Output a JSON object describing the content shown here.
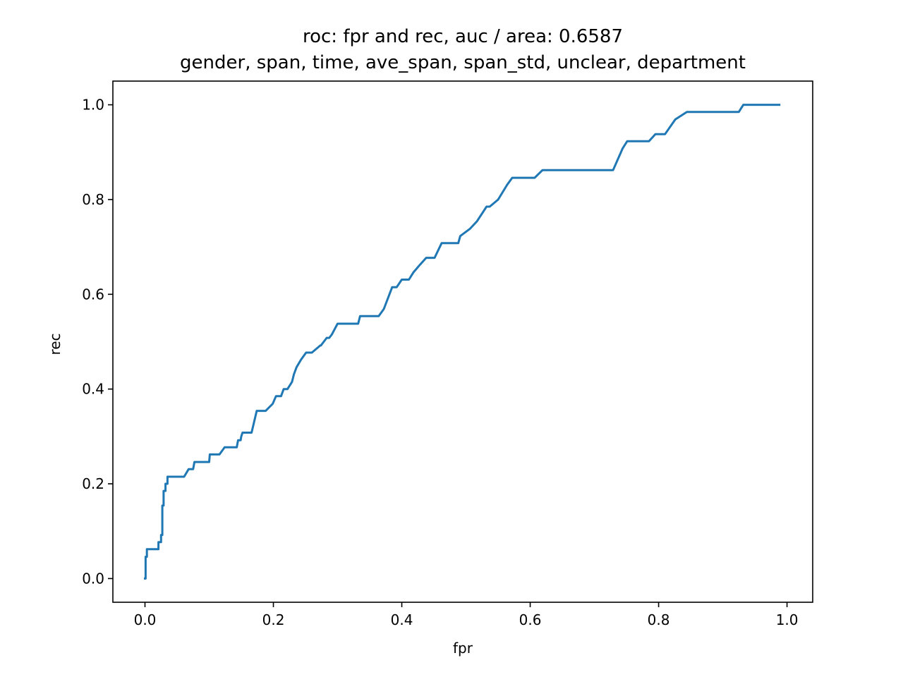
{
  "chart_data": {
    "type": "line",
    "title": "roc: fpr and rec, auc / area: 0.6587",
    "subtitle": "gender, span, time, ave_span, span_std, unclear, department",
    "xlabel": "fpr",
    "ylabel": "rec",
    "xlim": [
      -0.05,
      1.04
    ],
    "ylim": [
      -0.05,
      1.05
    ],
    "grid": false,
    "x_ticks": [
      0.0,
      0.2,
      0.4,
      0.6,
      0.8,
      1.0
    ],
    "x_tick_labels": [
      "0.0",
      "0.2",
      "0.4",
      "0.6",
      "0.8",
      "1.0"
    ],
    "y_ticks": [
      0.0,
      0.2,
      0.4,
      0.6,
      0.8,
      1.0
    ],
    "y_tick_labels": [
      "0.0",
      "0.2",
      "0.4",
      "0.6",
      "0.8",
      "1.0"
    ],
    "series": [
      {
        "color": "#1f77b4",
        "x": [
          0.0,
          0.001,
          0.001,
          0.003,
          0.003,
          0.021,
          0.021,
          0.025,
          0.025,
          0.027,
          0.027,
          0.029,
          0.029,
          0.032,
          0.032,
          0.035,
          0.035,
          0.037,
          0.037,
          0.061,
          0.068,
          0.075,
          0.077,
          0.1,
          0.101,
          0.116,
          0.124,
          0.143,
          0.145,
          0.149,
          0.15,
          0.152,
          0.166,
          0.174,
          0.188,
          0.199,
          0.204,
          0.212,
          0.216,
          0.222,
          0.229,
          0.232,
          0.236,
          0.243,
          0.251,
          0.257,
          0.26,
          0.273,
          0.274,
          0.283,
          0.287,
          0.291,
          0.3,
          0.304,
          0.332,
          0.335,
          0.364,
          0.372,
          0.385,
          0.392,
          0.4,
          0.411,
          0.418,
          0.428,
          0.438,
          0.451,
          0.462,
          0.488,
          0.491,
          0.506,
          0.517,
          0.532,
          0.537,
          0.55,
          0.564,
          0.572,
          0.607,
          0.619,
          0.729,
          0.744,
          0.751,
          0.785,
          0.795,
          0.81,
          0.826,
          0.844,
          0.925,
          0.932,
          0.988
        ],
        "y": [
          0.0,
          0.0,
          0.046,
          0.046,
          0.062,
          0.062,
          0.077,
          0.077,
          0.092,
          0.092,
          0.154,
          0.154,
          0.185,
          0.185,
          0.2,
          0.2,
          0.215,
          0.215,
          0.215,
          0.215,
          0.231,
          0.231,
          0.246,
          0.246,
          0.262,
          0.262,
          0.277,
          0.277,
          0.292,
          0.292,
          0.3,
          0.308,
          0.308,
          0.354,
          0.354,
          0.369,
          0.385,
          0.385,
          0.4,
          0.4,
          0.415,
          0.431,
          0.446,
          0.462,
          0.477,
          0.477,
          0.477,
          0.492,
          0.492,
          0.508,
          0.508,
          0.515,
          0.538,
          0.538,
          0.538,
          0.554,
          0.554,
          0.569,
          0.615,
          0.615,
          0.631,
          0.631,
          0.646,
          0.662,
          0.677,
          0.677,
          0.708,
          0.708,
          0.723,
          0.738,
          0.754,
          0.785,
          0.785,
          0.8,
          0.831,
          0.846,
          0.846,
          0.862,
          0.862,
          0.908,
          0.923,
          0.923,
          0.938,
          0.938,
          0.969,
          0.985,
          0.985,
          1.0,
          1.0
        ]
      }
    ]
  }
}
